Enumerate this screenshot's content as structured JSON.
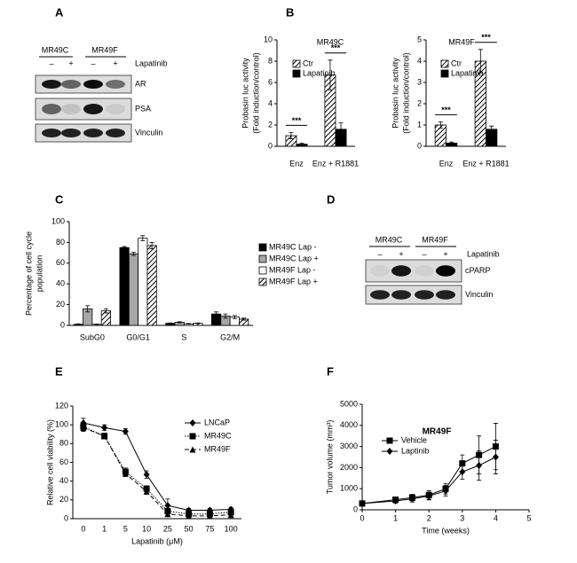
{
  "panels": [
    "A",
    "B",
    "C",
    "D",
    "E",
    "F"
  ],
  "blots": [
    {
      "cell_lines": [
        "MR49C",
        "MR49F"
      ],
      "signs": [
        "–",
        "+",
        "–",
        "+"
      ],
      "treatment": "Lapatinib",
      "bands": [
        "AR",
        "PSA",
        "Vinculin"
      ]
    },
    {
      "cell_lines": [
        "MR49C",
        "MR49F"
      ],
      "signs": [
        "–",
        "+",
        "–",
        "+"
      ],
      "treatment": "Lapatinib",
      "bands": [
        "cPARP",
        "Vinculin"
      ]
    }
  ],
  "chart_data": [
    {
      "type": "bar",
      "title": "MR49C",
      "categories": [
        "Enz",
        "Enz + R1881"
      ],
      "series": [
        {
          "name": "Ctr",
          "color": "#ffffff",
          "hatch": true,
          "values": [
            1.0,
            6.7
          ],
          "errors": [
            0.3,
            1.4
          ]
        },
        {
          "name": "Lapatinib",
          "color": "#000000",
          "values": [
            0.2,
            1.6
          ],
          "errors": [
            0.1,
            0.6
          ]
        }
      ],
      "ylabel": [
        "Probasin luc activity",
        "(Fold induction/control)"
      ],
      "ylim": [
        0,
        10
      ],
      "yticks": [
        0,
        2,
        4,
        6,
        8,
        10
      ],
      "annotations": [
        "***",
        "***"
      ]
    },
    {
      "type": "bar",
      "title": "MR49F",
      "categories": [
        "Enz",
        "Enz + R1881"
      ],
      "series": [
        {
          "name": "Ctr",
          "color": "#ffffff",
          "hatch": true,
          "values": [
            1.0,
            4.0
          ],
          "errors": [
            0.15,
            0.55
          ]
        },
        {
          "name": "Lapatinib",
          "color": "#000000",
          "values": [
            0.15,
            0.8
          ],
          "errors": [
            0.05,
            0.15
          ]
        }
      ],
      "ylabel": [
        "Probasin luc activity",
        "(Fold induction/control)"
      ],
      "ylim": [
        0,
        5
      ],
      "yticks": [
        0,
        1,
        2,
        3,
        4,
        5
      ],
      "annotations": [
        "***",
        "***"
      ]
    },
    {
      "type": "bar",
      "categories": [
        "SubG0",
        "G0/G1",
        "S",
        "G2/M"
      ],
      "series": [
        {
          "name": "MR49C Lap -",
          "color": "#000000",
          "values": [
            1,
            75,
            2,
            11
          ],
          "errors": [
            0.5,
            1,
            0.3,
            2
          ]
        },
        {
          "name": "MR49C Lap +",
          "color": "#a6a6a6",
          "values": [
            16,
            69,
            3,
            9
          ],
          "errors": [
            3,
            1.5,
            0.5,
            2
          ]
        },
        {
          "name": "MR49F Lap -",
          "color": "#ffffff",
          "values": [
            1,
            84,
            1.5,
            8
          ],
          "errors": [
            0.3,
            2.5,
            0.3,
            1.5
          ]
        },
        {
          "name": "MR49F Lap +",
          "color": "#ffffff",
          "hatch": true,
          "values": [
            14,
            77,
            2,
            6
          ],
          "errors": [
            2,
            3,
            0.3,
            1
          ]
        }
      ],
      "ylabel": [
        "Percentage of cell cycle",
        "population"
      ],
      "ylim": [
        0,
        100
      ],
      "yticks": [
        0,
        20,
        40,
        60,
        80,
        100
      ]
    },
    {
      "type": "line",
      "categories": [
        "0",
        "1",
        "5",
        "10",
        "25",
        "50",
        "75",
        "100"
      ],
      "series": [
        {
          "name": "LNCaP",
          "color": "#000000",
          "marker": "diamond",
          "linestyle": "solid",
          "values": [
            102,
            97,
            93,
            47,
            14,
            9,
            9,
            10
          ],
          "errors": [
            5,
            3,
            3,
            4,
            7,
            2,
            2,
            2
          ]
        },
        {
          "name": "MR49C",
          "color": "#000000",
          "marker": "square",
          "linestyle": "dotted",
          "values": [
            98,
            88,
            50,
            32,
            8,
            5,
            5,
            7
          ],
          "errors": [
            4,
            3,
            4,
            3,
            3,
            2,
            2,
            2
          ]
        },
        {
          "name": "MR49F",
          "color": "#000000",
          "marker": "triangle",
          "linestyle": "dashed",
          "values": [
            97,
            88,
            48,
            29,
            5,
            3,
            3,
            4
          ],
          "errors": [
            4,
            3,
            3,
            3,
            2,
            1,
            1,
            1
          ]
        }
      ],
      "xlabel": "Lapatinib (μM)",
      "ylabel": [
        "Relative cell viability (%)"
      ],
      "ylim": [
        0,
        120
      ],
      "yticks": [
        0,
        20,
        40,
        60,
        80,
        100,
        120
      ]
    },
    {
      "type": "line",
      "title": "MR49F",
      "x": [
        0,
        1,
        1.5,
        2,
        2.5,
        3,
        3.5,
        4
      ],
      "series": [
        {
          "name": "Vehicle",
          "color": "#000000",
          "marker": "square",
          "linestyle": "solid",
          "values": [
            300,
            480,
            580,
            700,
            1000,
            2200,
            2600,
            3000
          ],
          "errors": [
            60,
            100,
            150,
            200,
            250,
            400,
            900,
            1100
          ]
        },
        {
          "name": "Laptinib",
          "color": "#000000",
          "marker": "diamond",
          "linestyle": "solid",
          "values": [
            300,
            420,
            520,
            650,
            900,
            1800,
            2100,
            2500
          ],
          "errors": [
            60,
            100,
            150,
            180,
            250,
            350,
            700,
            800
          ]
        }
      ],
      "xlabel": "Time (weeks)",
      "ylabel": [
        "Tumor volume (mm³)"
      ],
      "xlim": [
        0,
        5
      ],
      "xticks": [
        0,
        1,
        2,
        3,
        4,
        5
      ],
      "ylim": [
        0,
        5000
      ],
      "yticks": [
        0,
        1000,
        2000,
        3000,
        4000,
        5000
      ]
    }
  ]
}
